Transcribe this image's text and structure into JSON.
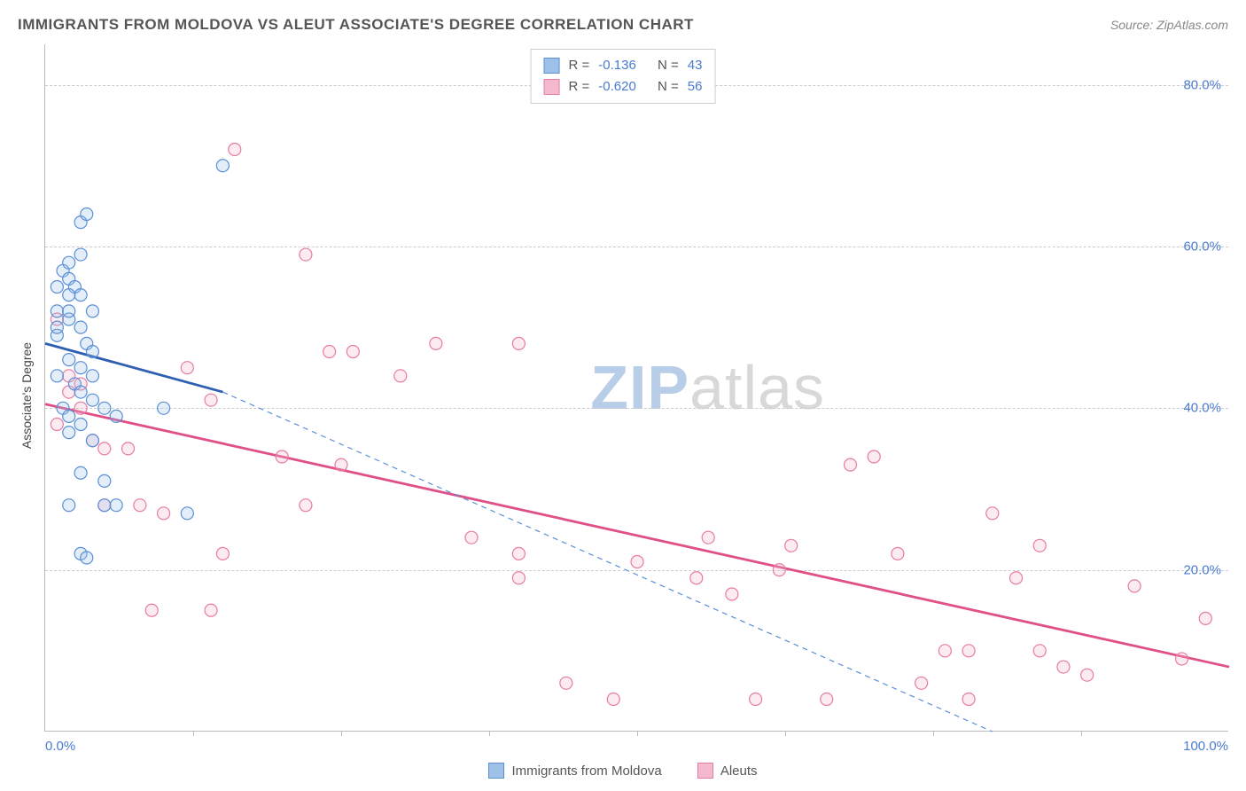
{
  "title": "IMMIGRANTS FROM MOLDOVA VS ALEUT ASSOCIATE'S DEGREE CORRELATION CHART",
  "source_label": "Source:",
  "source_name": "ZipAtlas.com",
  "ylabel": "Associate's Degree",
  "watermark_zip": "ZIP",
  "watermark_atlas": "atlas",
  "chart": {
    "type": "scatter",
    "xlim": [
      0,
      100
    ],
    "ylim": [
      0,
      85
    ],
    "xtick_left": "0.0%",
    "xtick_right": "100.0%",
    "yticks": [
      {
        "v": 20,
        "label": "20.0%"
      },
      {
        "v": 40,
        "label": "40.0%"
      },
      {
        "v": 60,
        "label": "60.0%"
      },
      {
        "v": 80,
        "label": "80.0%"
      }
    ],
    "xticks_minor": [
      12.5,
      25,
      37.5,
      50,
      62.5,
      75,
      87.5
    ],
    "background_color": "#ffffff",
    "grid_color": "#cccccc",
    "marker_radius": 7,
    "marker_stroke_width": 1.2,
    "marker_fill_opacity": 0.28,
    "trend_line_width": 2.8,
    "series": {
      "moldova": {
        "label": "Immigrants from Moldova",
        "color_stroke": "#5a8fd6",
        "color_fill": "#9ec1ea",
        "trend_color": "#2f5fb0",
        "R": "-0.136",
        "N": "43",
        "trend_solid": {
          "x1": 0,
          "y1": 48,
          "x2": 15,
          "y2": 42
        },
        "trend_dash": {
          "x1": 15,
          "y1": 42,
          "x2": 80,
          "y2": 0
        },
        "points": [
          [
            1,
            52
          ],
          [
            1.5,
            57
          ],
          [
            2,
            58
          ],
          [
            2,
            56
          ],
          [
            2.5,
            55
          ],
          [
            3,
            59
          ],
          [
            3,
            54
          ],
          [
            2,
            51
          ],
          [
            3,
            50
          ],
          [
            3.5,
            48
          ],
          [
            1,
            49
          ],
          [
            2,
            46
          ],
          [
            3,
            45
          ],
          [
            4,
            47
          ],
          [
            4,
            44
          ],
          [
            1,
            44
          ],
          [
            2.5,
            43
          ],
          [
            3,
            42
          ],
          [
            4,
            41
          ],
          [
            1.5,
            40
          ],
          [
            2,
            39
          ],
          [
            3,
            38
          ],
          [
            5,
            40
          ],
          [
            6,
            39
          ],
          [
            4,
            36
          ],
          [
            2,
            37
          ],
          [
            3,
            32
          ],
          [
            5,
            31
          ],
          [
            1,
            50
          ],
          [
            2,
            52
          ],
          [
            3,
            63
          ],
          [
            3.5,
            64
          ],
          [
            15,
            70
          ],
          [
            3,
            22
          ],
          [
            3.5,
            21.5
          ],
          [
            2,
            28
          ],
          [
            5,
            28
          ],
          [
            6,
            28
          ],
          [
            10,
            40
          ],
          [
            12,
            27
          ],
          [
            1,
            55
          ],
          [
            2,
            54
          ],
          [
            4,
            52
          ]
        ]
      },
      "aleuts": {
        "label": "Aleuts",
        "color_stroke": "#e77ba3",
        "color_fill": "#f4b9cf",
        "trend_color": "#e05088",
        "R": "-0.620",
        "N": "56",
        "trend_solid": {
          "x1": 0,
          "y1": 40.5,
          "x2": 100,
          "y2": 8
        },
        "points": [
          [
            1,
            51
          ],
          [
            2,
            44
          ],
          [
            3,
            43
          ],
          [
            2,
            42
          ],
          [
            3,
            40
          ],
          [
            1,
            38
          ],
          [
            4,
            36
          ],
          [
            5,
            35
          ],
          [
            7,
            35
          ],
          [
            5,
            28
          ],
          [
            8,
            28
          ],
          [
            10,
            27
          ],
          [
            12,
            45
          ],
          [
            14,
            41
          ],
          [
            16,
            72
          ],
          [
            20,
            34
          ],
          [
            22,
            28
          ],
          [
            22,
            59
          ],
          [
            24,
            47
          ],
          [
            26,
            47
          ],
          [
            25,
            33
          ],
          [
            30,
            44
          ],
          [
            33,
            48
          ],
          [
            40,
            48
          ],
          [
            36,
            24
          ],
          [
            40,
            22
          ],
          [
            40,
            19
          ],
          [
            44,
            6
          ],
          [
            50,
            21
          ],
          [
            48,
            4
          ],
          [
            55,
            19
          ],
          [
            56,
            24
          ],
          [
            58,
            17
          ],
          [
            60,
            4
          ],
          [
            62,
            20
          ],
          [
            63,
            23
          ],
          [
            66,
            4
          ],
          [
            68,
            33
          ],
          [
            70,
            34
          ],
          [
            72,
            22
          ],
          [
            74,
            6
          ],
          [
            76,
            10
          ],
          [
            78,
            4
          ],
          [
            78,
            10
          ],
          [
            80,
            27
          ],
          [
            82,
            19
          ],
          [
            84,
            23
          ],
          [
            84,
            10
          ],
          [
            86,
            8
          ],
          [
            88,
            7
          ],
          [
            92,
            18
          ],
          [
            96,
            9
          ],
          [
            98,
            14
          ],
          [
            9,
            15
          ],
          [
            14,
            15
          ],
          [
            15,
            22
          ]
        ]
      }
    }
  },
  "legend_R_label": "R =",
  "legend_N_label": "N ="
}
